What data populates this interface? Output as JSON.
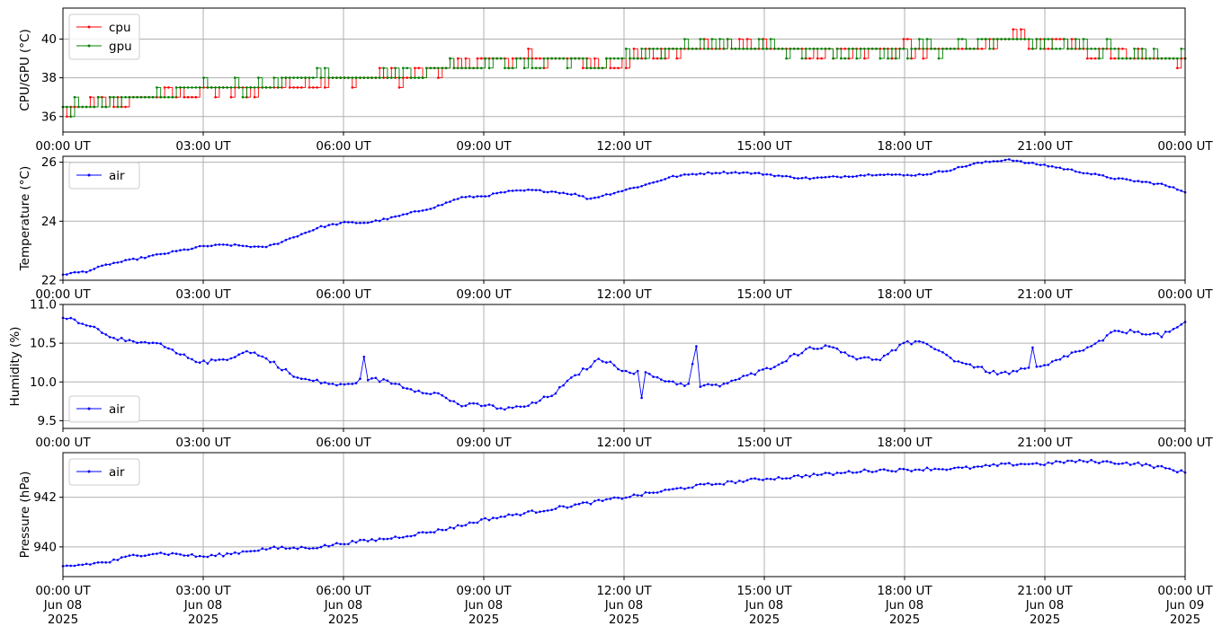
{
  "colors": {
    "cpu": "#ff0000",
    "gpu": "#008000",
    "air": "#0000ff",
    "grid": "#b0b0b0",
    "axis": "#000000"
  },
  "chart_data": [
    {
      "type": "line",
      "ylabel": "CPU/GPU (°C)",
      "ylim": [
        35.2,
        41.6
      ],
      "yticks": [
        36,
        38,
        40
      ],
      "ytick_labels": [
        "36",
        "38",
        "40"
      ],
      "xlim": [
        "2025-06-08T00:00Z",
        "2025-06-09T00:00Z"
      ],
      "xtick_labels": [
        "00:00 UT",
        "03:00 UT",
        "06:00 UT",
        "09:00 UT",
        "12:00 UT",
        "15:00 UT",
        "18:00 UT",
        "21:00 UT",
        "00:00 UT"
      ],
      "grid": true,
      "legend": "upper left",
      "series": [
        {
          "name": "cpu",
          "color": "#ff0000",
          "hours": [
            0,
            0.5,
            1,
            1.5,
            2,
            2.5,
            3,
            3.5,
            4,
            4.5,
            5,
            5.5,
            6,
            6.5,
            7,
            7.5,
            8,
            8.5,
            9,
            9.5,
            10,
            10.5,
            11,
            11.5,
            12,
            12.5,
            13,
            13.5,
            14,
            14.5,
            15,
            15.5,
            16,
            16.5,
            17,
            17.5,
            18,
            18.5,
            19,
            19.5,
            20,
            20.5,
            21,
            21.5,
            22,
            22.5,
            23,
            23.5,
            24
          ],
          "values": [
            36.2,
            36.5,
            36.7,
            37.0,
            37.1,
            37.2,
            37.3,
            37.3,
            37.4,
            37.6,
            37.8,
            37.9,
            37.9,
            38.0,
            38.0,
            38.1,
            38.4,
            38.8,
            38.9,
            39.0,
            39.0,
            39.0,
            38.8,
            38.7,
            38.9,
            39.1,
            39.4,
            39.6,
            39.6,
            39.6,
            39.5,
            39.4,
            39.3,
            39.3,
            39.3,
            39.4,
            39.5,
            39.4,
            39.3,
            39.6,
            39.9,
            40.0,
            39.8,
            39.6,
            39.4,
            39.3,
            39.2,
            39.0,
            38.9
          ]
        },
        {
          "name": "gpu",
          "color": "#008000",
          "hours": [
            0,
            0.5,
            1,
            1.5,
            2,
            2.5,
            3,
            3.5,
            4,
            4.5,
            5,
            5.5,
            6,
            6.5,
            7,
            7.5,
            8,
            8.5,
            9,
            9.5,
            10,
            10.5,
            11,
            11.5,
            12,
            12.5,
            13,
            13.5,
            14,
            14.5,
            15,
            15.5,
            16,
            16.5,
            17,
            17.5,
            18,
            18.5,
            19,
            19.5,
            20,
            20.5,
            21,
            21.5,
            22,
            22.5,
            23,
            23.5,
            24
          ],
          "values": [
            36.5,
            36.5,
            36.6,
            37.0,
            37.1,
            37.3,
            37.5,
            37.5,
            37.5,
            37.6,
            38.0,
            38.1,
            38.1,
            38.2,
            38.2,
            38.3,
            38.6,
            38.7,
            38.8,
            38.8,
            38.8,
            38.8,
            38.7,
            38.7,
            39.0,
            39.2,
            39.5,
            39.6,
            39.6,
            39.6,
            39.6,
            39.5,
            39.4,
            39.4,
            39.4,
            39.5,
            39.5,
            39.5,
            39.5,
            39.7,
            40.0,
            40.0,
            39.8,
            39.6,
            39.5,
            39.4,
            39.3,
            39.1,
            39.0
          ]
        }
      ]
    },
    {
      "type": "line",
      "ylabel": "Temperature (°C)",
      "ylim": [
        22.0,
        26.2
      ],
      "yticks": [
        22,
        24,
        26
      ],
      "ytick_labels": [
        "22",
        "24",
        "26"
      ],
      "xlim": [
        "2025-06-08T00:00Z",
        "2025-06-09T00:00Z"
      ],
      "xtick_labels": [
        "00:00 UT",
        "03:00 UT",
        "06:00 UT",
        "09:00 UT",
        "12:00 UT",
        "15:00 UT",
        "18:00 UT",
        "21:00 UT",
        "00:00 UT"
      ],
      "grid": true,
      "legend": "upper left",
      "series": [
        {
          "name": "air",
          "color": "#0000ff",
          "hours": [
            0,
            0.5,
            1,
            1.5,
            2,
            2.5,
            3,
            3.5,
            4,
            4.25,
            4.5,
            5,
            5.5,
            6,
            6.5,
            7,
            7.5,
            8,
            8.5,
            9,
            9.5,
            10,
            10.5,
            11,
            11.25,
            11.5,
            12,
            12.5,
            13,
            13.5,
            14,
            14.5,
            15,
            15.5,
            16,
            16.5,
            17,
            17.5,
            18,
            18.5,
            19,
            19.5,
            20,
            20.25,
            20.5,
            21,
            21.5,
            22,
            22.5,
            23,
            23.5,
            24
          ],
          "values": [
            22.2,
            22.3,
            22.55,
            22.7,
            22.85,
            23.0,
            23.15,
            23.2,
            23.15,
            23.1,
            23.2,
            23.5,
            23.8,
            23.95,
            23.95,
            24.1,
            24.3,
            24.5,
            24.8,
            24.85,
            25.0,
            25.05,
            25.0,
            24.9,
            24.75,
            24.85,
            25.05,
            25.25,
            25.5,
            25.6,
            25.65,
            25.65,
            25.6,
            25.5,
            25.45,
            25.5,
            25.55,
            25.6,
            25.55,
            25.6,
            25.75,
            25.95,
            26.05,
            26.1,
            26.0,
            25.9,
            25.75,
            25.6,
            25.45,
            25.35,
            25.25,
            25.0
          ]
        }
      ]
    },
    {
      "type": "line",
      "ylabel": "Humidity (%)",
      "ylim": [
        9.4,
        11.0
      ],
      "yticks": [
        9.5,
        10.0,
        10.5,
        11.0
      ],
      "ytick_labels": [
        "9.5",
        "10.0",
        "10.5",
        "11.0"
      ],
      "xlim": [
        "2025-06-08T00:00Z",
        "2025-06-09T00:00Z"
      ],
      "xtick_labels": [
        "00:00 UT",
        "03:00 UT",
        "06:00 UT",
        "09:00 UT",
        "12:00 UT",
        "15:00 UT",
        "18:00 UT",
        "21:00 UT",
        "00:00 UT"
      ],
      "grid": true,
      "legend": "lower left",
      "series": [
        {
          "name": "air",
          "color": "#0000ff",
          "hours": [
            0,
            0.5,
            1,
            1.5,
            2,
            2.5,
            3,
            3.5,
            4,
            4.5,
            5,
            5.5,
            6,
            6.5,
            7,
            7.5,
            8,
            8.5,
            9,
            9.5,
            10,
            10.5,
            11,
            11.5,
            12,
            12.5,
            13,
            13.5,
            14,
            14.5,
            15,
            15.5,
            16,
            16.5,
            17,
            17.5,
            18,
            18.5,
            19,
            19.5,
            20,
            20.5,
            21,
            21.5,
            22,
            22.5,
            23,
            23.5,
            24
          ],
          "values": [
            10.85,
            10.75,
            10.6,
            10.5,
            10.5,
            10.35,
            10.25,
            10.3,
            10.4,
            10.25,
            10.05,
            10.0,
            9.95,
            10.05,
            10.0,
            9.9,
            9.85,
            9.7,
            9.7,
            9.65,
            9.7,
            9.85,
            10.1,
            10.3,
            10.15,
            10.1,
            10.0,
            9.95,
            9.95,
            10.05,
            10.15,
            10.3,
            10.45,
            10.45,
            10.3,
            10.3,
            10.5,
            10.5,
            10.3,
            10.2,
            10.1,
            10.15,
            10.2,
            10.35,
            10.45,
            10.65,
            10.65,
            10.6,
            10.75
          ]
        }
      ]
    },
    {
      "type": "line",
      "ylabel": "Pressure (hPa)",
      "ylim": [
        938.8,
        943.8
      ],
      "yticks": [
        940,
        942
      ],
      "ytick_labels": [
        "940",
        "942"
      ],
      "xlim": [
        "2025-06-08T00:00Z",
        "2025-06-09T00:00Z"
      ],
      "xtick_labels": [
        "00:00 UT\nJun 08\n2025",
        "03:00 UT\nJun 08\n2025",
        "06:00 UT\nJun 08\n2025",
        "09:00 UT\nJun 08\n2025",
        "12:00 UT\nJun 08\n2025",
        "15:00 UT\nJun 08\n2025",
        "18:00 UT\nJun 08\n2025",
        "21:00 UT\nJun 08\n2025",
        "00:00 UT\nJun 09\n2025"
      ],
      "grid": true,
      "legend": "upper left",
      "series": [
        {
          "name": "air",
          "color": "#0000ff",
          "hours": [
            0,
            0.5,
            1,
            1.5,
            2,
            2.5,
            3,
            3.5,
            4,
            4.5,
            5,
            5.5,
            6,
            6.5,
            7,
            7.5,
            8,
            8.5,
            9,
            9.5,
            10,
            10.5,
            11,
            11.5,
            12,
            12.5,
            13,
            13.5,
            14,
            14.5,
            15,
            15.5,
            16,
            16.5,
            17,
            17.5,
            18,
            18.5,
            19,
            19.5,
            20,
            20.5,
            21,
            21.5,
            22,
            22.5,
            23,
            23.5,
            24
          ],
          "values": [
            939.2,
            939.3,
            939.4,
            939.65,
            939.75,
            939.7,
            939.6,
            939.7,
            939.85,
            939.95,
            939.95,
            940.0,
            940.15,
            940.25,
            940.35,
            940.5,
            940.65,
            940.85,
            941.1,
            941.25,
            941.4,
            941.55,
            941.7,
            941.85,
            942.0,
            942.15,
            942.3,
            942.45,
            942.55,
            942.65,
            942.75,
            942.8,
            942.9,
            942.95,
            943.05,
            943.1,
            943.1,
            943.15,
            943.15,
            943.2,
            943.3,
            943.35,
            943.35,
            943.45,
            943.45,
            943.4,
            943.35,
            943.2,
            943.0
          ]
        }
      ]
    }
  ]
}
